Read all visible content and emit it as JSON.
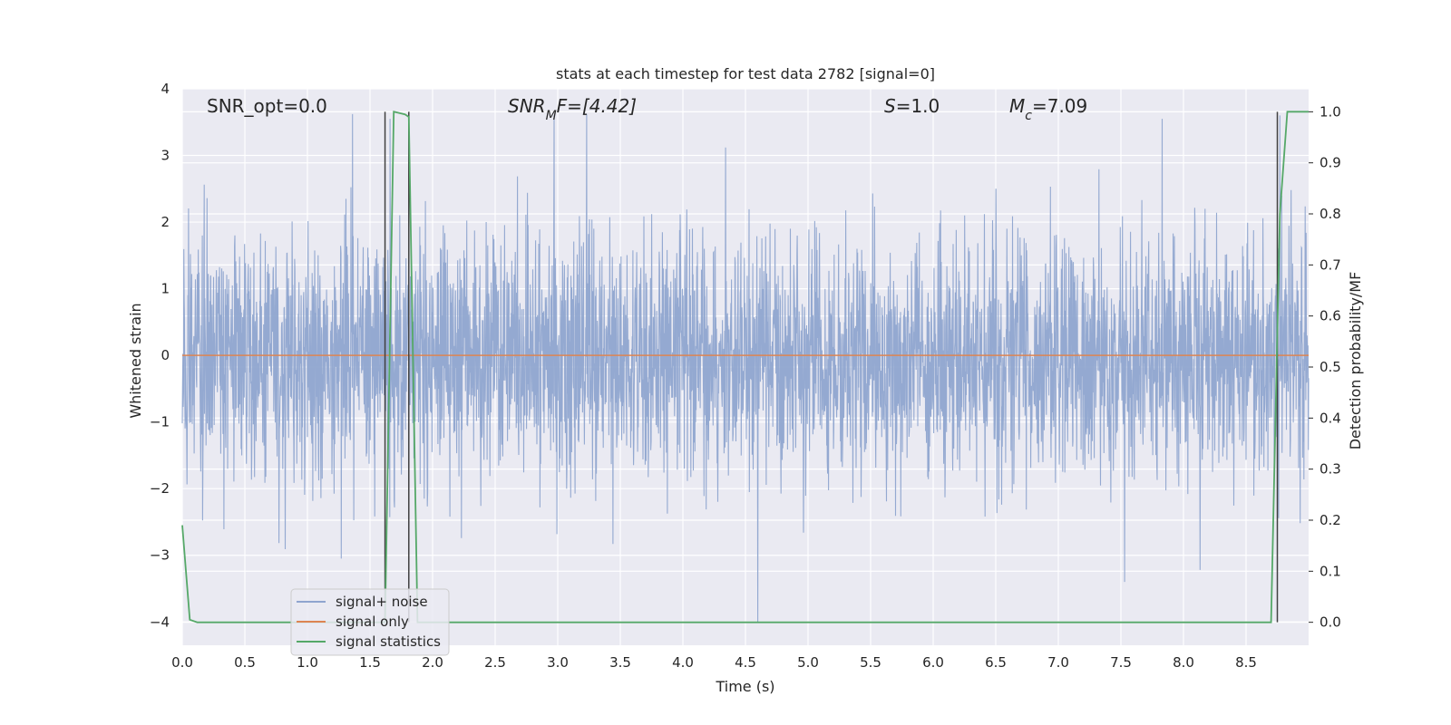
{
  "chart_data": {
    "type": "line",
    "title": "stats at each timestep for test data 2782 [signal=0]",
    "xlabel": "Time (s)",
    "ylabel": "Whitened strain",
    "y2label": "Detection probability/MF",
    "xlim": [
      0.0,
      9.0
    ],
    "ylim": [
      -4.35,
      4.0
    ],
    "y2lim": [
      -0.045,
      1.045
    ],
    "xticks": [
      "0.0",
      "0.5",
      "1.0",
      "1.5",
      "2.0",
      "2.5",
      "3.0",
      "3.5",
      "4.0",
      "4.5",
      "5.0",
      "5.5",
      "6.0",
      "6.5",
      "7.0",
      "7.5",
      "8.0",
      "8.5"
    ],
    "xtick_values": [
      0.0,
      0.5,
      1.0,
      1.5,
      2.0,
      2.5,
      3.0,
      3.5,
      4.0,
      4.5,
      5.0,
      5.5,
      6.0,
      6.5,
      7.0,
      7.5,
      8.0,
      8.5
    ],
    "yticks": [
      "4",
      "3",
      "2",
      "1",
      "0",
      "−1",
      "−2",
      "−3",
      "−4"
    ],
    "ytick_values": [
      4,
      3,
      2,
      1,
      0,
      -1,
      -2,
      -3,
      -4
    ],
    "y2ticks": [
      "1.0",
      "0.9",
      "0.8",
      "0.7",
      "0.6",
      "0.5",
      "0.4",
      "0.3",
      "0.2",
      "0.1",
      "0.0"
    ],
    "y2tick_values": [
      1.0,
      0.9,
      0.8,
      0.7,
      0.6,
      0.5,
      0.4,
      0.3,
      0.2,
      0.1,
      0.0
    ],
    "grid": true,
    "legend_placement": "lower-left",
    "annotations": {
      "snr_opt": "SNR_opt=0.0",
      "snr_mf_base": "SNR",
      "snr_mf_sub": "M",
      "snr_mf_rest": "F=[4.42]",
      "s_var": "S",
      "s_rest": "=1.0",
      "mc_var": "M",
      "mc_sub": "c",
      "mc_rest": "=7.09"
    },
    "series": [
      {
        "name": "signal+ noise",
        "color": "#8fa5cf",
        "description_level": "noise",
        "noise_std": 0.9,
        "noise_max_abs": 3.65,
        "notable_extremes": [
          [
            1.36,
            3.62
          ],
          [
            1.66,
            3.55
          ],
          [
            2.97,
            3.6
          ],
          [
            3.23,
            3.62
          ],
          [
            4.34,
            3.12
          ],
          [
            7.83,
            3.55
          ],
          [
            8.77,
            3.6
          ],
          [
            4.6,
            -4.0
          ],
          [
            7.53,
            -3.4
          ],
          [
            1.27,
            -3.05
          ]
        ]
      },
      {
        "name": "signal only",
        "color": "#dd8452",
        "x": [
          0.0,
          9.0
        ],
        "y": [
          0.0,
          0.0
        ]
      },
      {
        "name": "signal statistics",
        "color": "#55a868",
        "axis": "right",
        "x": [
          0.0,
          0.06,
          0.12,
          1.62,
          1.69,
          1.78,
          1.81,
          1.88,
          8.7,
          8.77,
          8.83,
          8.93,
          9.0
        ],
        "y": [
          0.19,
          0.005,
          0.0,
          0.0,
          1.0,
          0.995,
          0.99,
          0.0,
          0.0,
          0.8,
          1.0,
          1.0,
          1.0
        ]
      }
    ],
    "vlines": [
      {
        "x": 1.62,
        "color": "#404040",
        "y2": [
          0.0,
          1.0
        ]
      },
      {
        "x": 1.81,
        "color": "#404040",
        "y2": [
          0.0,
          1.0
        ]
      },
      {
        "x": 8.75,
        "color": "#404040",
        "y2": [
          0.0,
          1.0
        ]
      }
    ],
    "colors": {
      "plot_background": "#eaeaf2",
      "grid": "#ffffff",
      "text": "#262626",
      "legend_border": "#cccccc"
    }
  }
}
